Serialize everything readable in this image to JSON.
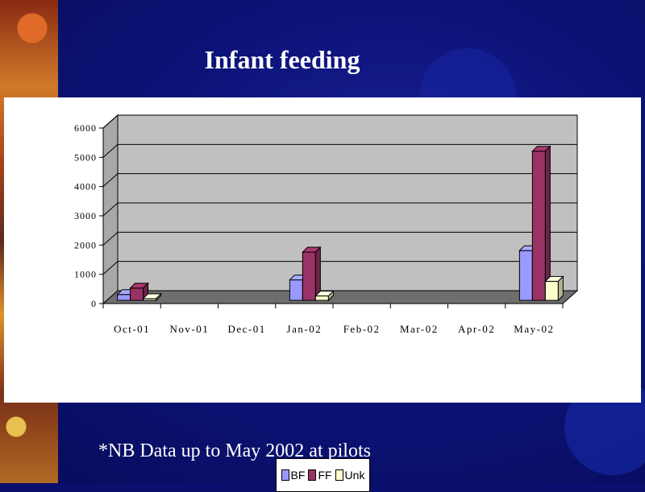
{
  "slide": {
    "title": "Infant feeding",
    "footnote": "*NB Data up to May 2002 at pilots"
  },
  "colors": {
    "background": "#0c1378",
    "plot_wall": "#c0c0c0",
    "plot_floor": "#6e6e6e",
    "bf": "#9999ff",
    "ff": "#993366",
    "unk": "#ffffcc"
  },
  "chart_data": {
    "type": "bar",
    "style": "3d-clustered-column",
    "categories": [
      "Oct-01",
      "Nov-01",
      "Dec-01",
      "Jan-02",
      "Feb-02",
      "Mar-02",
      "Apr-02",
      "May-02"
    ],
    "series": [
      {
        "name": "BF",
        "color": "#9999ff",
        "values": [
          200,
          0,
          0,
          700,
          0,
          0,
          0,
          1700
        ]
      },
      {
        "name": "FF",
        "color": "#993366",
        "values": [
          420,
          0,
          0,
          1650,
          0,
          0,
          0,
          5100
        ]
      },
      {
        "name": "Unk",
        "color": "#ffffcc",
        "values": [
          60,
          0,
          0,
          150,
          0,
          0,
          0,
          650
        ]
      }
    ],
    "yticks": [
      "0",
      "1000",
      "2000",
      "3000",
      "4000",
      "5000",
      "6000"
    ],
    "ylim": [
      0,
      6000
    ],
    "grid": true,
    "legend_position": "bottom"
  }
}
